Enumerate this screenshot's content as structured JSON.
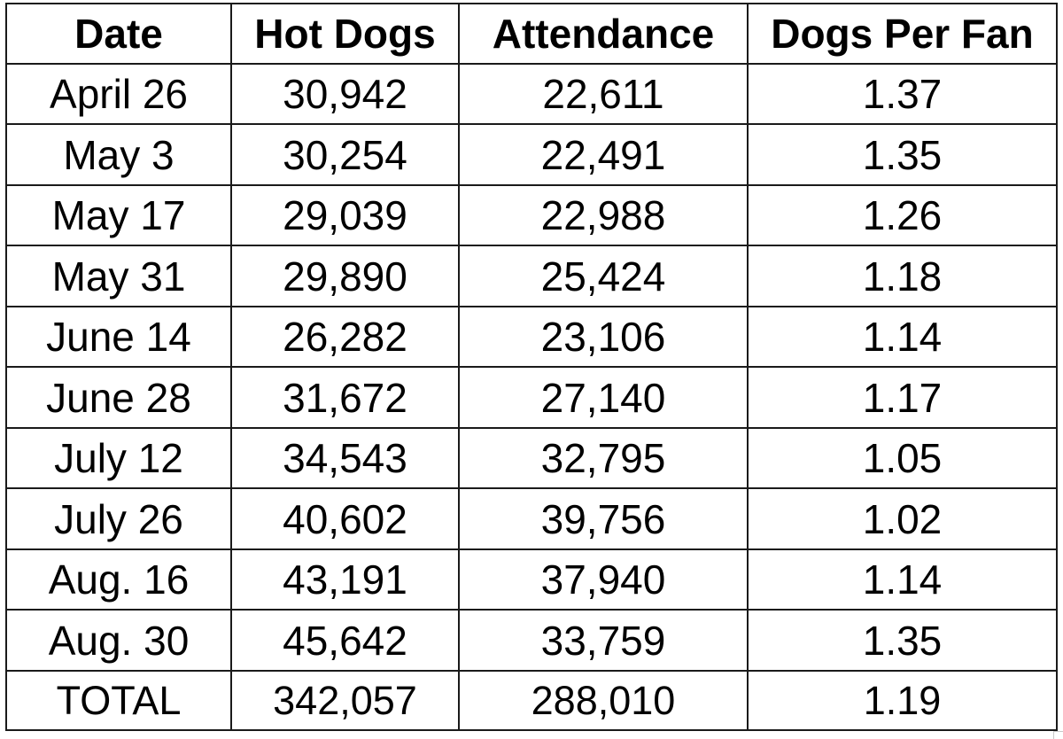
{
  "table": {
    "headers": [
      "Date",
      "Hot Dogs",
      "Attendance",
      "Dogs Per Fan"
    ],
    "rows": [
      [
        "April 26",
        "30,942",
        "22,611",
        "1.37"
      ],
      [
        "May 3",
        "30,254",
        "22,491",
        "1.35"
      ],
      [
        "May 17",
        "29,039",
        "22,988",
        "1.26"
      ],
      [
        "May 31",
        "29,890",
        "25,424",
        "1.18"
      ],
      [
        "June 14",
        "26,282",
        "23,106",
        "1.14"
      ],
      [
        "June 28",
        "31,672",
        "27,140",
        "1.17"
      ],
      [
        "July 12",
        "34,543",
        "32,795",
        "1.05"
      ],
      [
        "July 26",
        "40,602",
        "39,756",
        "1.02"
      ],
      [
        "Aug. 16",
        "43,191",
        "37,940",
        "1.14"
      ],
      [
        "Aug. 30",
        "45,642",
        "33,759",
        "1.35"
      ]
    ],
    "total": [
      "TOTAL",
      "342,057",
      "288,010",
      "1.19"
    ]
  },
  "colors": {
    "border": "#1a1a1a",
    "text": "#000000",
    "background": "#ffffff"
  }
}
